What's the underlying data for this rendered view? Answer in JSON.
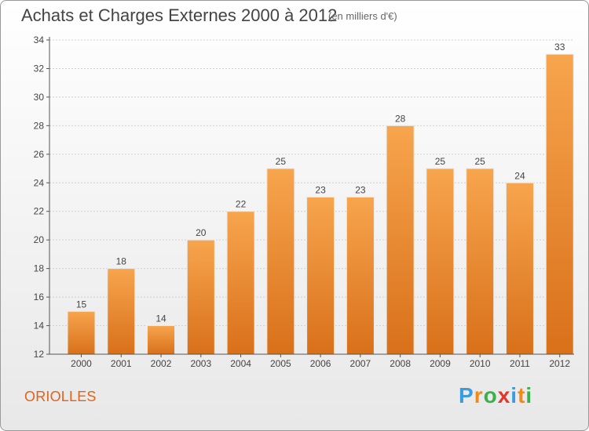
{
  "title": "Achats et Charges Externes 2000 à 2012",
  "subtitle": "(en milliers d'€)",
  "commune": "ORIOLLES",
  "logo": {
    "letters": [
      "P",
      "r",
      "o",
      "x",
      "i",
      "t",
      "i"
    ],
    "colors": [
      "#3a9be0",
      "#f08a1c",
      "#3cb04a",
      "#e0382b",
      "#3a9be0",
      "#f08a1c",
      "#3cb04a"
    ]
  },
  "chart_data": {
    "type": "bar",
    "categories": [
      "2000",
      "2001",
      "2002",
      "2003",
      "2004",
      "2005",
      "2006",
      "2007",
      "2008",
      "2009",
      "2010",
      "2011",
      "2012"
    ],
    "values": [
      15,
      18,
      14,
      20,
      22,
      25,
      23,
      23,
      28,
      25,
      25,
      24,
      33
    ],
    "ylim": [
      12,
      34
    ],
    "yticks": [
      12,
      14,
      16,
      18,
      20,
      22,
      24,
      26,
      28,
      30,
      32,
      34
    ],
    "grid": true,
    "bar_color_top": "#f7a54e",
    "bar_color_bottom": "#d9701a"
  }
}
